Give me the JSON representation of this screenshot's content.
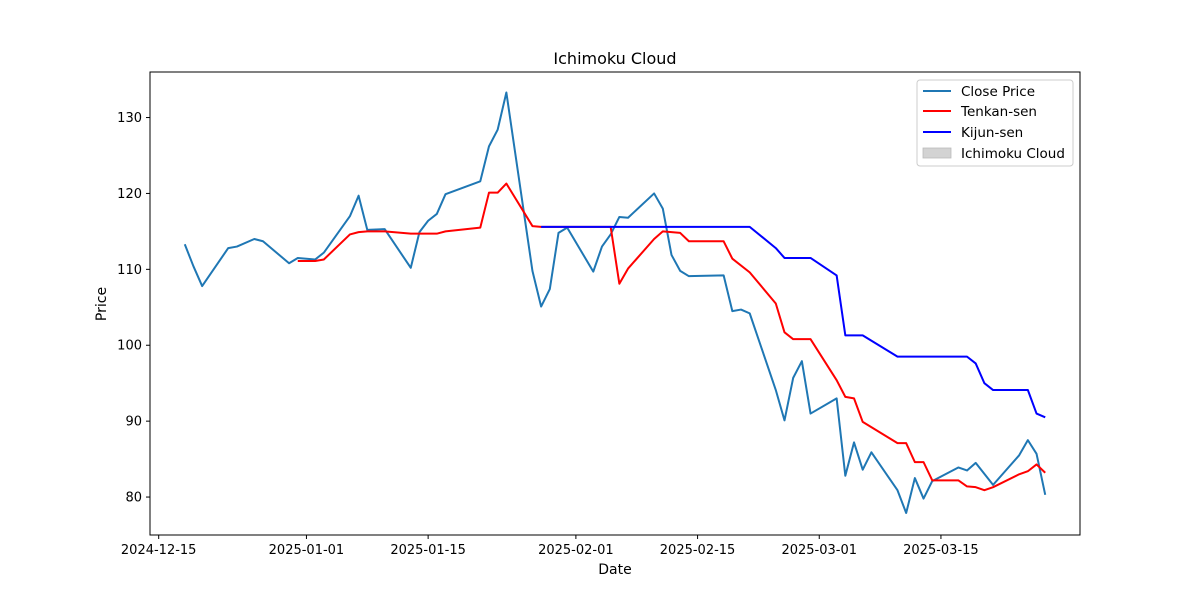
{
  "chart_data": {
    "type": "line",
    "title": "Ichimoku Cloud",
    "xlabel": "Date",
    "ylabel": "Price",
    "xlim": [
      "2024-12-14",
      "2025-03-31"
    ],
    "ylim": [
      75,
      136
    ],
    "x_ticks": [
      "2024-12-15",
      "2025-01-01",
      "2025-01-15",
      "2025-02-01",
      "2025-02-15",
      "2025-03-01",
      "2025-03-15"
    ],
    "y_ticks": [
      80,
      90,
      100,
      110,
      120,
      130
    ],
    "grid": false,
    "legend": "top-right",
    "series": [
      {
        "name": "Close Price",
        "color": "#1f77b4",
        "points": [
          [
            "2024-12-18",
            113.3
          ],
          [
            "2024-12-19",
            110.4
          ],
          [
            "2024-12-20",
            107.8
          ],
          [
            "2024-12-23",
            112.8
          ],
          [
            "2024-12-24",
            113.0
          ],
          [
            "2024-12-26",
            114.0
          ],
          [
            "2024-12-27",
            113.7
          ],
          [
            "2024-12-30",
            110.8
          ],
          [
            "2024-12-31",
            111.5
          ],
          [
            "2025-01-02",
            111.3
          ],
          [
            "2025-01-03",
            112.2
          ],
          [
            "2025-01-06",
            117.0
          ],
          [
            "2025-01-07",
            119.7
          ],
          [
            "2025-01-08",
            115.2
          ],
          [
            "2025-01-10",
            115.3
          ],
          [
            "2025-01-13",
            110.2
          ],
          [
            "2025-01-14",
            114.9
          ],
          [
            "2025-01-15",
            116.4
          ],
          [
            "2025-01-16",
            117.3
          ],
          [
            "2025-01-17",
            119.9
          ],
          [
            "2025-01-21",
            121.6
          ],
          [
            "2025-01-22",
            126.2
          ],
          [
            "2025-01-23",
            128.4
          ],
          [
            "2025-01-24",
            133.3
          ],
          [
            "2025-01-27",
            109.8
          ],
          [
            "2025-01-28",
            105.1
          ],
          [
            "2025-01-29",
            107.4
          ],
          [
            "2025-01-30",
            114.8
          ],
          [
            "2025-01-31",
            115.5
          ],
          [
            "2025-02-03",
            109.7
          ],
          [
            "2025-02-04",
            113.0
          ],
          [
            "2025-02-05",
            114.6
          ],
          [
            "2025-02-06",
            116.9
          ],
          [
            "2025-02-07",
            116.8
          ],
          [
            "2025-02-10",
            120.0
          ],
          [
            "2025-02-11",
            118.0
          ],
          [
            "2025-02-12",
            111.9
          ],
          [
            "2025-02-13",
            109.8
          ],
          [
            "2025-02-14",
            109.1
          ],
          [
            "2025-02-18",
            109.2
          ],
          [
            "2025-02-19",
            104.5
          ],
          [
            "2025-02-20",
            104.7
          ],
          [
            "2025-02-21",
            104.2
          ],
          [
            "2025-02-24",
            94.1
          ],
          [
            "2025-02-25",
            90.1
          ],
          [
            "2025-02-26",
            95.7
          ],
          [
            "2025-02-27",
            97.9
          ],
          [
            "2025-02-28",
            91.0
          ],
          [
            "2025-03-03",
            93.0
          ],
          [
            "2025-03-04",
            82.8
          ],
          [
            "2025-03-05",
            87.2
          ],
          [
            "2025-03-06",
            83.6
          ],
          [
            "2025-03-07",
            85.9
          ],
          [
            "2025-03-10",
            80.9
          ],
          [
            "2025-03-11",
            77.9
          ],
          [
            "2025-03-12",
            82.5
          ],
          [
            "2025-03-13",
            79.8
          ],
          [
            "2025-03-14",
            82.1
          ],
          [
            "2025-03-17",
            83.9
          ],
          [
            "2025-03-18",
            83.5
          ],
          [
            "2025-03-19",
            84.5
          ],
          [
            "2025-03-21",
            81.6
          ],
          [
            "2025-03-24",
            85.5
          ],
          [
            "2025-03-25",
            87.5
          ],
          [
            "2025-03-26",
            85.7
          ],
          [
            "2025-03-27",
            80.3
          ]
        ]
      },
      {
        "name": "Tenkan-sen",
        "color": "#ff0000",
        "points": [
          [
            "2024-12-31",
            111.1
          ],
          [
            "2025-01-02",
            111.1
          ],
          [
            "2025-01-03",
            111.3
          ],
          [
            "2025-01-06",
            114.6
          ],
          [
            "2025-01-07",
            114.9
          ],
          [
            "2025-01-08",
            115.0
          ],
          [
            "2025-01-10",
            115.0
          ],
          [
            "2025-01-13",
            114.7
          ],
          [
            "2025-01-14",
            114.7
          ],
          [
            "2025-01-15",
            114.7
          ],
          [
            "2025-01-16",
            114.7
          ],
          [
            "2025-01-17",
            115.0
          ],
          [
            "2025-01-21",
            115.5
          ],
          [
            "2025-01-22",
            120.1
          ],
          [
            "2025-01-23",
            120.1
          ],
          [
            "2025-01-24",
            121.3
          ],
          [
            "2025-01-27",
            115.7
          ],
          [
            "2025-01-28",
            115.6
          ],
          [
            "2025-02-05",
            115.6
          ],
          [
            "2025-02-06",
            108.1
          ],
          [
            "2025-02-07",
            110.1
          ],
          [
            "2025-02-10",
            114.0
          ],
          [
            "2025-02-11",
            115.0
          ],
          [
            "2025-02-13",
            114.8
          ],
          [
            "2025-02-14",
            113.7
          ],
          [
            "2025-02-18",
            113.7
          ],
          [
            "2025-02-19",
            111.4
          ],
          [
            "2025-02-21",
            109.6
          ],
          [
            "2025-02-24",
            105.5
          ],
          [
            "2025-02-25",
            101.7
          ],
          [
            "2025-02-26",
            100.8
          ],
          [
            "2025-02-28",
            100.8
          ],
          [
            "2025-03-03",
            95.4
          ],
          [
            "2025-03-04",
            93.2
          ],
          [
            "2025-03-05",
            93.0
          ],
          [
            "2025-03-06",
            89.9
          ],
          [
            "2025-03-10",
            87.1
          ],
          [
            "2025-03-11",
            87.1
          ],
          [
            "2025-03-12",
            84.6
          ],
          [
            "2025-03-13",
            84.6
          ],
          [
            "2025-03-14",
            82.2
          ],
          [
            "2025-03-17",
            82.2
          ],
          [
            "2025-03-18",
            81.4
          ],
          [
            "2025-03-19",
            81.3
          ],
          [
            "2025-03-20",
            80.9
          ],
          [
            "2025-03-21",
            81.3
          ],
          [
            "2025-03-24",
            83.0
          ],
          [
            "2025-03-25",
            83.4
          ],
          [
            "2025-03-26",
            84.3
          ],
          [
            "2025-03-27",
            83.2
          ]
        ]
      },
      {
        "name": "Kijun-sen",
        "color": "#0000ff",
        "points": [
          [
            "2025-01-28",
            115.6
          ],
          [
            "2025-02-21",
            115.6
          ],
          [
            "2025-02-24",
            112.8
          ],
          [
            "2025-02-25",
            111.5
          ],
          [
            "2025-02-28",
            111.5
          ],
          [
            "2025-03-03",
            109.2
          ],
          [
            "2025-03-04",
            101.3
          ],
          [
            "2025-03-06",
            101.3
          ],
          [
            "2025-03-10",
            98.5
          ],
          [
            "2025-03-18",
            98.5
          ],
          [
            "2025-03-19",
            97.6
          ],
          [
            "2025-03-20",
            95.0
          ],
          [
            "2025-03-21",
            94.1
          ],
          [
            "2025-03-25",
            94.1
          ],
          [
            "2025-03-26",
            91.0
          ],
          [
            "2025-03-27",
            90.5
          ]
        ]
      }
    ],
    "cloud": {
      "name": "Ichimoku Cloud",
      "color": "#d3d3d3"
    }
  }
}
